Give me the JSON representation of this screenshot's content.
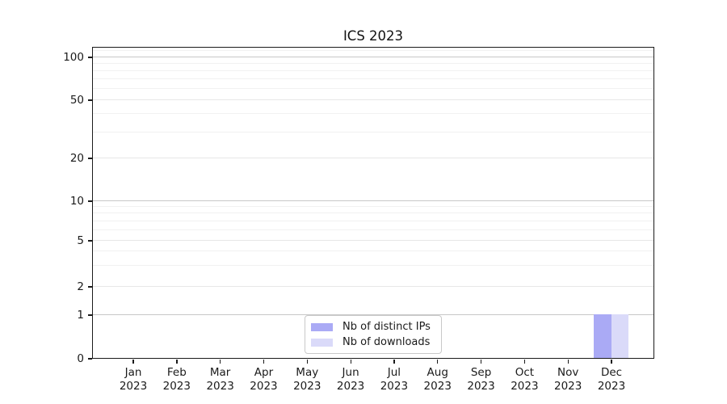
{
  "chart_data": {
    "type": "bar",
    "title": "ICS 2023",
    "categories": [
      {
        "month": "Jan",
        "year": "2023"
      },
      {
        "month": "Feb",
        "year": "2023"
      },
      {
        "month": "Mar",
        "year": "2023"
      },
      {
        "month": "Apr",
        "year": "2023"
      },
      {
        "month": "May",
        "year": "2023"
      },
      {
        "month": "Jun",
        "year": "2023"
      },
      {
        "month": "Jul",
        "year": "2023"
      },
      {
        "month": "Aug",
        "year": "2023"
      },
      {
        "month": "Sep",
        "year": "2023"
      },
      {
        "month": "Oct",
        "year": "2023"
      },
      {
        "month": "Nov",
        "year": "2023"
      },
      {
        "month": "Dec",
        "year": "2023"
      }
    ],
    "series": [
      {
        "name": "Nb of distinct IPs",
        "color": "#aaaaf5",
        "values": [
          0,
          0,
          0,
          0,
          0,
          0,
          0,
          0,
          0,
          0,
          0,
          1
        ]
      },
      {
        "name": "Nb of downloads",
        "color": "#dadaf9",
        "values": [
          0,
          0,
          0,
          0,
          0,
          0,
          0,
          0,
          0,
          0,
          0,
          1
        ]
      }
    ],
    "y_axis": {
      "scale": "symlog",
      "tick_labels": [
        "0",
        "1",
        "2",
        "5",
        "10",
        "20",
        "50",
        "100"
      ],
      "tick_values": [
        0,
        1,
        2,
        5,
        10,
        20,
        50,
        100
      ],
      "major_grid_values": [
        1,
        10,
        100
      ],
      "sub_grid_values": [
        2,
        5,
        20,
        50
      ],
      "minor_grid_values": [
        3,
        4,
        6,
        7,
        8,
        9,
        30,
        40,
        60,
        70,
        80,
        90,
        110
      ],
      "ylim": [
        0,
        118
      ],
      "grid": true
    },
    "legend": {
      "position": "lower center"
    },
    "colors": {
      "spine": "#1b1b1b",
      "grid_major": "#c7c7c7",
      "grid_minor": "#f1f1f1"
    }
  }
}
